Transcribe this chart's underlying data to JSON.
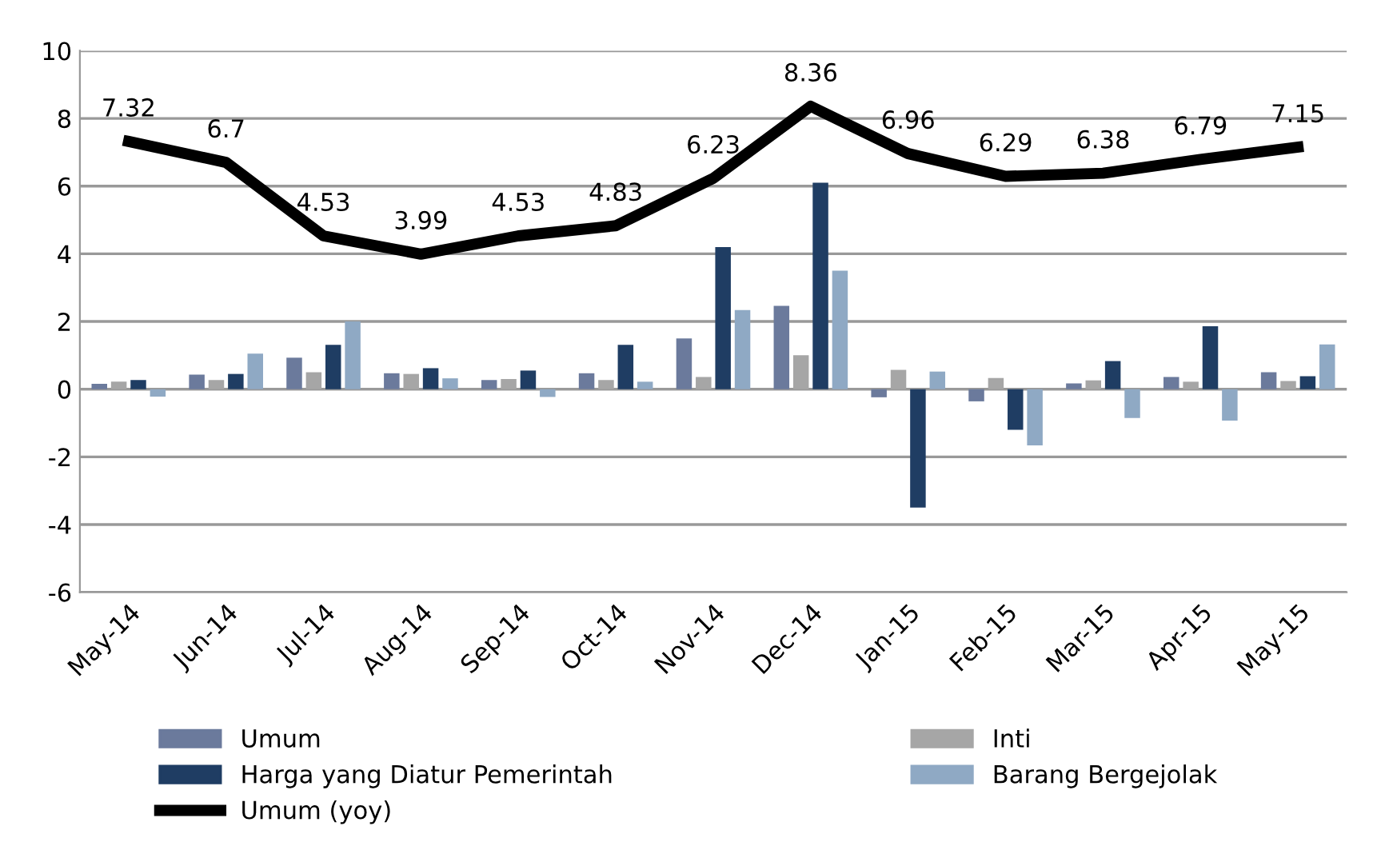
{
  "chart_data": {
    "type": "bar",
    "categories": [
      "May-14",
      "Jun-14",
      "Jul-14",
      "Aug-14",
      "Sep-14",
      "Oct-14",
      "Nov-14",
      "Dec-14",
      "Jan-15",
      "Feb-15",
      "Mar-15",
      "Apr-15",
      "May-15"
    ],
    "series": [
      {
        "name": "Umum",
        "color": "#6b7a9c",
        "values": [
          0.16,
          0.43,
          0.93,
          0.47,
          0.27,
          0.47,
          1.5,
          2.46,
          -0.24,
          -0.36,
          0.17,
          0.36,
          0.5
        ]
      },
      {
        "name": "Inti",
        "color": "#a6a6a6",
        "values": [
          0.22,
          0.27,
          0.5,
          0.45,
          0.3,
          0.27,
          0.36,
          1.0,
          0.57,
          0.33,
          0.26,
          0.22,
          0.24
        ]
      },
      {
        "name": "Harga yang Diatur Pemerintah",
        "color": "#1f3d63",
        "values": [
          0.27,
          0.45,
          1.31,
          0.62,
          0.55,
          1.31,
          4.2,
          6.1,
          -3.5,
          -1.2,
          0.83,
          1.86,
          0.38
        ]
      },
      {
        "name": "Barang Bergejolak",
        "color": "#8fa9c4",
        "values": [
          -0.22,
          1.05,
          2.0,
          0.32,
          -0.23,
          0.22,
          2.34,
          3.5,
          0.52,
          -1.66,
          -0.85,
          -0.93,
          1.32
        ]
      },
      {
        "name": "Umum (yoy)",
        "type": "line",
        "color": "#000000",
        "data_labels": true,
        "values": [
          7.32,
          6.7,
          4.53,
          3.99,
          4.53,
          4.83,
          6.23,
          8.36,
          6.96,
          6.29,
          6.38,
          6.79,
          7.15
        ]
      }
    ],
    "ylim": [
      -6,
      10
    ],
    "yticks": [
      -6,
      -4,
      -2,
      0,
      2,
      4,
      6,
      8,
      10
    ],
    "grid": "y",
    "legend": "bottom",
    "marker": "none",
    "line_style": "solid"
  }
}
